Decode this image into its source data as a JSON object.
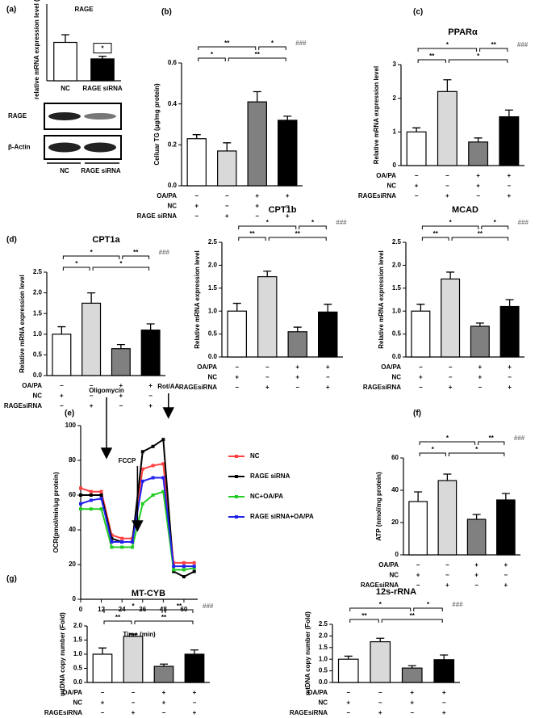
{
  "chart_data": [
    {
      "type": "bar",
      "panel_label": "(a)",
      "title": "RAGE",
      "y_label": "relative mRNA expression level (fold)",
      "categories": [
        "NC",
        "RAGE siRNA"
      ],
      "values": [
        1.0,
        0.57
      ],
      "errors": [
        0.2,
        0.07
      ],
      "colors": [
        "#ffffff",
        "#000000"
      ],
      "ylim": [
        0,
        2
      ],
      "star_label": "*",
      "blot": {
        "rows": [
          "RAGE",
          "β-Actin"
        ],
        "lanes": [
          "NC",
          "RAGE siRNA"
        ]
      }
    },
    {
      "type": "bar",
      "panel_label": "(b)",
      "y_label": "Celluar TG (μg/mg protein)",
      "values": [
        0.23,
        0.17,
        0.41,
        0.32
      ],
      "errors": [
        0.02,
        0.04,
        0.05,
        0.02
      ],
      "colors": [
        "#ffffff",
        "#d9d9d9",
        "#808080",
        "#000000"
      ],
      "ylim": [
        0,
        0.6
      ],
      "yticks": [
        {
          "value": 0,
          "label": "0.0"
        },
        {
          "value": 0.2,
          "label": "0.2"
        },
        {
          "value": 0.4,
          "label": "0.4"
        },
        {
          "value": 0.6,
          "label": "0.6"
        }
      ],
      "conditions": [
        {
          "label": "OA/PA",
          "signs": [
            "−",
            "−",
            "+",
            "+"
          ]
        },
        {
          "label": "NC",
          "signs": [
            "+",
            "−",
            "+",
            "−"
          ]
        },
        {
          "label": "RAGE siRNA",
          "signs": [
            "−",
            "+",
            "−",
            "+"
          ]
        }
      ],
      "comparisons": [
        {
          "bars": [
            0,
            2
          ],
          "label": "**"
        },
        {
          "bars": [
            2,
            3
          ],
          "label": "*"
        },
        {
          "bars": [
            0,
            1
          ],
          "label": "*"
        },
        {
          "bars": [
            1,
            3
          ],
          "label": "**"
        }
      ],
      "trend_label": "###"
    },
    {
      "type": "bar",
      "panel_label": "(c)",
      "title": "PPARα",
      "y_label": "Relative mRNA expression level",
      "values": [
        1.0,
        2.2,
        0.7,
        1.45
      ],
      "errors": [
        0.12,
        0.35,
        0.12,
        0.2
      ],
      "colors": [
        "#ffffff",
        "#d9d9d9",
        "#808080",
        "#000000"
      ],
      "ylim": [
        0,
        3
      ],
      "yticks": [
        0,
        1,
        2,
        3
      ],
      "conditions": [
        {
          "label": "OA/PA",
          "signs": [
            "−",
            "−",
            "+",
            "+"
          ]
        },
        {
          "label": "NC",
          "signs": [
            "+",
            "−",
            "+",
            "−"
          ]
        },
        {
          "label": "RAGEsiRNA",
          "signs": [
            "−",
            "+",
            "−",
            "+"
          ]
        }
      ],
      "comparisons": [
        {
          "bars": [
            0,
            2
          ],
          "label": "*"
        },
        {
          "bars": [
            2,
            3
          ],
          "label": "**"
        },
        {
          "bars": [
            0,
            1
          ],
          "label": "**"
        },
        {
          "bars": [
            1,
            3
          ],
          "label": "*"
        }
      ],
      "trend_label": "###"
    },
    {
      "type": "bar",
      "panel_label": "(d)",
      "title": "CPT1a",
      "y_label": "Relative mRNA expression level",
      "values": [
        1.0,
        1.75,
        0.65,
        1.1
      ],
      "errors": [
        0.18,
        0.25,
        0.1,
        0.15
      ],
      "colors": [
        "#ffffff",
        "#d9d9d9",
        "#808080",
        "#000000"
      ],
      "ylim": [
        0,
        2.5
      ],
      "yticks": [
        {
          "value": 0,
          "label": "0.0"
        },
        {
          "value": 0.5,
          "label": "0.5"
        },
        {
          "value": 1,
          "label": "1.0"
        },
        {
          "value": 1.5,
          "label": "1.5"
        },
        {
          "value": 2,
          "label": "2.0"
        },
        {
          "value": 2.5,
          "label": "2.5"
        }
      ],
      "conditions": [
        {
          "label": "OA/PA",
          "signs": [
            "−",
            "−",
            "+",
            "+"
          ]
        },
        {
          "label": "NC",
          "signs": [
            "+",
            "−",
            "+",
            "−"
          ]
        },
        {
          "label": "RAGEsiRNA",
          "signs": [
            "−",
            "+",
            "−",
            "+"
          ]
        }
      ],
      "comparisons": [
        {
          "bars": [
            0,
            2
          ],
          "label": "*"
        },
        {
          "bars": [
            2,
            3
          ],
          "label": "**"
        },
        {
          "bars": [
            0,
            1
          ],
          "label": "*"
        },
        {
          "bars": [
            1,
            3
          ],
          "label": "*"
        }
      ],
      "trend_label": "###"
    },
    {
      "type": "bar",
      "title": "CPT1b",
      "y_label": "Relative mRNA expression level",
      "values": [
        1.0,
        1.75,
        0.55,
        0.98
      ],
      "errors": [
        0.17,
        0.12,
        0.1,
        0.17
      ],
      "colors": [
        "#ffffff",
        "#d9d9d9",
        "#808080",
        "#000000"
      ],
      "ylim": [
        0,
        2.5
      ],
      "yticks": [
        {
          "value": 0,
          "label": "0.0"
        },
        {
          "value": 0.5,
          "label": "0.5"
        },
        {
          "value": 1,
          "label": "1.0"
        },
        {
          "value": 1.5,
          "label": "1.5"
        },
        {
          "value": 2,
          "label": "2.0"
        },
        {
          "value": 2.5,
          "label": "2.5"
        }
      ],
      "conditions": [
        {
          "label": "OA/PA",
          "signs": [
            "−",
            "−",
            "+",
            "+"
          ]
        },
        {
          "label": "NC",
          "signs": [
            "+",
            "−",
            "+",
            "−"
          ]
        },
        {
          "label": "RAGEsiRNA",
          "signs": [
            "−",
            "+",
            "−",
            "+"
          ]
        }
      ],
      "comparisons": [
        {
          "bars": [
            0,
            2
          ],
          "label": "*"
        },
        {
          "bars": [
            2,
            3
          ],
          "label": "*"
        },
        {
          "bars": [
            0,
            1
          ],
          "label": "**"
        },
        {
          "bars": [
            1,
            3
          ],
          "label": "**"
        }
      ],
      "trend_label": "###"
    },
    {
      "type": "bar",
      "title": "MCAD",
      "y_label": "Relative mRNA expression level",
      "values": [
        1.0,
        1.7,
        0.67,
        1.1
      ],
      "errors": [
        0.15,
        0.15,
        0.07,
        0.15
      ],
      "colors": [
        "#ffffff",
        "#d9d9d9",
        "#808080",
        "#000000"
      ],
      "ylim": [
        0,
        2.5
      ],
      "yticks": [
        {
          "value": 0,
          "label": "0.0"
        },
        {
          "value": 0.5,
          "label": "0.5"
        },
        {
          "value": 1,
          "label": "1.0"
        },
        {
          "value": 1.5,
          "label": "1.5"
        },
        {
          "value": 2,
          "label": "2.0"
        },
        {
          "value": 2.5,
          "label": "2.5"
        }
      ],
      "conditions": [
        {
          "label": "OA/PA",
          "signs": [
            "−",
            "−",
            "+",
            "+"
          ]
        },
        {
          "label": "NC",
          "signs": [
            "+",
            "−",
            "+",
            "−"
          ]
        },
        {
          "label": "RAGEsiRNA",
          "signs": [
            "−",
            "+",
            "−",
            "+"
          ]
        }
      ],
      "comparisons": [
        {
          "bars": [
            0,
            2
          ],
          "label": "*"
        },
        {
          "bars": [
            2,
            3
          ],
          "label": "*"
        },
        {
          "bars": [
            0,
            1
          ],
          "label": "**"
        },
        {
          "bars": [
            1,
            3
          ],
          "label": "**"
        }
      ],
      "trend_label": "###"
    },
    {
      "type": "line",
      "panel_label": "(e)",
      "x_label": "Time (min)",
      "y_label": "OCR(pmol/min/μg protein)",
      "x": [
        0,
        6,
        12,
        18,
        24,
        30,
        36,
        42,
        48,
        54,
        60,
        66
      ],
      "xlim": [
        0,
        68
      ],
      "xticks": [
        0,
        12,
        24,
        36,
        48,
        60
      ],
      "ylim": [
        0,
        100
      ],
      "yticks": [
        0,
        20,
        40,
        60,
        80,
        100
      ],
      "annotations": [
        "Oligomycin",
        "FCCP",
        "Rot/AA"
      ],
      "series": [
        {
          "name": "NC",
          "color": "#ff4040",
          "values": [
            64,
            62,
            62,
            37,
            35,
            35,
            75,
            77,
            78,
            21,
            21,
            21
          ]
        },
        {
          "name": "RAGE siRNA",
          "color": "#000000",
          "values": [
            60,
            60,
            60,
            35,
            33,
            33,
            85,
            88,
            92,
            16,
            13,
            16
          ]
        },
        {
          "name": "NC+OA/PA",
          "color": "#22cc22",
          "values": [
            52,
            52,
            52,
            30,
            30,
            30,
            55,
            60,
            62,
            17,
            17,
            18
          ]
        },
        {
          "name": "RAGE siRNA+OA/PA",
          "color": "#2222ee",
          "values": [
            55,
            57,
            58,
            33,
            33,
            33,
            68,
            70,
            70,
            19,
            19,
            19
          ]
        }
      ]
    },
    {
      "type": "bar",
      "panel_label": "(f)",
      "y_label": "ATP (nmol/mg protein)",
      "values": [
        33,
        46,
        22,
        34
      ],
      "errors": [
        6,
        4,
        3,
        4
      ],
      "colors": [
        "#ffffff",
        "#d9d9d9",
        "#808080",
        "#000000"
      ],
      "ylim": [
        0,
        60
      ],
      "yticks": [
        0,
        20,
        40,
        60
      ],
      "conditions": [
        {
          "label": "OA/PA",
          "signs": [
            "−",
            "−",
            "+",
            "+"
          ]
        },
        {
          "label": "NC",
          "signs": [
            "+",
            "−",
            "+",
            "−"
          ]
        },
        {
          "label": "RAGEsiRNA",
          "signs": [
            "−",
            "+",
            "−",
            "+"
          ]
        }
      ],
      "comparisons": [
        {
          "bars": [
            0,
            2
          ],
          "label": "*"
        },
        {
          "bars": [
            2,
            3
          ],
          "label": "**"
        },
        {
          "bars": [
            0,
            1
          ],
          "label": "*"
        },
        {
          "bars": [
            1,
            3
          ],
          "label": "*"
        }
      ],
      "trend_label": "###"
    },
    {
      "type": "bar",
      "panel_label": "(g)",
      "title": "MT-CYB",
      "y_label": "mtDNA copy number (Fold)",
      "values": [
        1.0,
        1.63,
        0.57,
        1.0
      ],
      "errors": [
        0.22,
        0.08,
        0.08,
        0.15
      ],
      "colors": [
        "#ffffff",
        "#d9d9d9",
        "#808080",
        "#000000"
      ],
      "ylim": [
        0,
        2
      ],
      "yticks": [
        {
          "value": 0,
          "label": "0.0"
        },
        {
          "value": 0.5,
          "label": "0.5"
        },
        {
          "value": 1,
          "label": "1.0"
        },
        {
          "value": 1.5,
          "label": "1.5"
        },
        {
          "value": 2,
          "label": "2.0"
        }
      ],
      "conditions": [
        {
          "label": "OA/PA",
          "signs": [
            "−",
            "−",
            "+",
            "+"
          ]
        },
        {
          "label": "NC",
          "signs": [
            "+",
            "−",
            "+",
            "−"
          ]
        },
        {
          "label": "RAGEsiRNA",
          "signs": [
            "−",
            "+",
            "−",
            "+"
          ]
        }
      ],
      "comparisons": [
        {
          "bars": [
            0,
            2
          ],
          "label": "*"
        },
        {
          "bars": [
            2,
            3
          ],
          "label": "**"
        },
        {
          "bars": [
            0,
            1
          ],
          "label": "**"
        },
        {
          "bars": [
            1,
            3
          ],
          "label": "**"
        }
      ],
      "trend_label": "###"
    },
    {
      "type": "bar",
      "title": "12s-rRNA",
      "y_label": "mtDNA copy number (Fold)",
      "values": [
        1.0,
        1.75,
        0.62,
        0.98
      ],
      "errors": [
        0.13,
        0.15,
        0.1,
        0.2
      ],
      "colors": [
        "#ffffff",
        "#d9d9d9",
        "#808080",
        "#000000"
      ],
      "ylim": [
        0,
        2.5
      ],
      "yticks": [
        {
          "value": 0,
          "label": "0.0"
        },
        {
          "value": 0.5,
          "label": "0.5"
        },
        {
          "value": 1,
          "label": "1.0"
        },
        {
          "value": 1.5,
          "label": "1.5"
        },
        {
          "value": 2,
          "label": "2.0"
        },
        {
          "value": 2.5,
          "label": "2.5"
        }
      ],
      "conditions": [
        {
          "label": "OA/PA",
          "signs": [
            "−",
            "−",
            "+",
            "+"
          ]
        },
        {
          "label": "NC",
          "signs": [
            "+",
            "−",
            "+",
            "−"
          ]
        },
        {
          "label": "RAGEsiRNA",
          "signs": [
            "−",
            "+",
            "−",
            "+"
          ]
        }
      ],
      "comparisons": [
        {
          "bars": [
            0,
            2
          ],
          "label": "*"
        },
        {
          "bars": [
            2,
            3
          ],
          "label": "*"
        },
        {
          "bars": [
            0,
            1
          ],
          "label": "**"
        },
        {
          "bars": [
            1,
            3
          ],
          "label": "**"
        }
      ],
      "trend_label": "###"
    }
  ]
}
